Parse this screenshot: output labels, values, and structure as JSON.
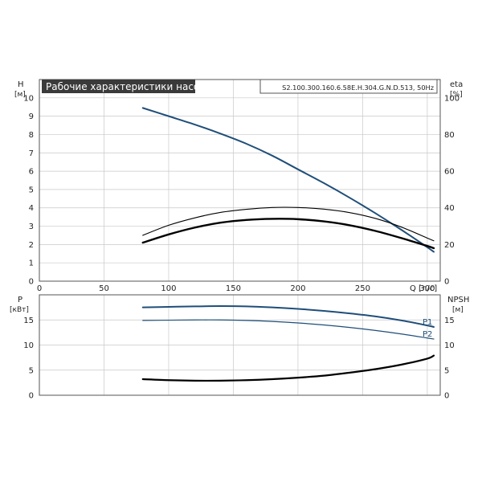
{
  "chart_data": [
    {
      "type": "line",
      "title": "Рабочие характеристики насоса",
      "subtitle": "S2.100.300.160.6.58E.H.304.G.N.D.513, 50Hz",
      "xlabel": "Q [л/с]",
      "ylabel": "H",
      "ylabel_unit": "[м]",
      "y2label": "eta",
      "y2label_unit": "[%]",
      "xlim": [
        0,
        310
      ],
      "ylim": [
        0,
        11
      ],
      "y2lim": [
        0,
        110
      ],
      "x_ticks": [
        0,
        50,
        100,
        150,
        200,
        250,
        300
      ],
      "y_ticks": [
        0,
        1,
        2,
        3,
        4,
        5,
        6,
        7,
        8,
        9,
        10
      ],
      "y2_ticks": [
        0,
        20,
        40,
        60,
        80,
        100
      ],
      "grid": true,
      "series": [
        {
          "name": "",
          "axis": "left",
          "color": "#1f4e79",
          "x": [
            80,
            100,
            120,
            140,
            160,
            180,
            200,
            220,
            240,
            260,
            280,
            300,
            305
          ],
          "y": [
            9.45,
            9.0,
            8.55,
            8.05,
            7.5,
            6.85,
            6.1,
            5.35,
            4.55,
            3.7,
            2.8,
            1.85,
            1.6
          ]
        },
        {
          "name": "",
          "axis": "right",
          "color": "#000000",
          "x": [
            80,
            100,
            120,
            140,
            160,
            180,
            200,
            220,
            240,
            260,
            280,
            300,
            305
          ],
          "y": [
            25,
            30.5,
            34.5,
            37.5,
            39.2,
            40.2,
            40.2,
            39.3,
            37.4,
            34.2,
            29.5,
            23.5,
            22
          ]
        },
        {
          "name": "",
          "axis": "right",
          "color": "#000000",
          "x": [
            80,
            100,
            120,
            140,
            160,
            180,
            200,
            220,
            240,
            260,
            280,
            300,
            305
          ],
          "y": [
            21,
            25.5,
            29.2,
            31.9,
            33.4,
            34.0,
            33.8,
            32.6,
            30.5,
            27.4,
            23.5,
            19.2,
            18
          ]
        }
      ]
    },
    {
      "type": "line",
      "xlim": [
        0,
        310
      ],
      "ylabel": "P",
      "ylabel_unit": "[кВт]",
      "y2label": "NPSH",
      "y2label_unit": "[м]",
      "ylim": [
        0,
        20
      ],
      "y2lim": [
        0,
        20
      ],
      "x_ticks": [
        0,
        50,
        100,
        150,
        200,
        250,
        300
      ],
      "y_ticks": [
        0,
        5,
        10,
        15
      ],
      "y2_ticks": [
        0,
        5,
        10,
        15
      ],
      "grid": true,
      "series": [
        {
          "name": "P1",
          "axis": "left",
          "color": "#1f4e79",
          "x": [
            80,
            100,
            120,
            140,
            160,
            180,
            200,
            220,
            240,
            260,
            280,
            300,
            305
          ],
          "y": [
            17.5,
            17.6,
            17.7,
            17.75,
            17.7,
            17.5,
            17.2,
            16.8,
            16.3,
            15.7,
            14.9,
            13.9,
            13.6
          ]
        },
        {
          "name": "P2",
          "axis": "left",
          "color": "#1f4e79",
          "x": [
            80,
            100,
            120,
            140,
            160,
            180,
            200,
            220,
            240,
            260,
            280,
            300,
            305
          ],
          "y": [
            14.9,
            14.95,
            15.0,
            15.0,
            14.9,
            14.7,
            14.4,
            14.0,
            13.5,
            12.9,
            12.2,
            11.4,
            11.2
          ]
        },
        {
          "name": "",
          "axis": "right",
          "color": "#000000",
          "x": [
            80,
            100,
            120,
            140,
            160,
            180,
            200,
            220,
            240,
            260,
            280,
            300,
            305
          ],
          "y": [
            3.2,
            3.0,
            2.9,
            2.9,
            3.0,
            3.2,
            3.5,
            3.9,
            4.5,
            5.2,
            6.1,
            7.3,
            7.9
          ]
        }
      ]
    }
  ]
}
